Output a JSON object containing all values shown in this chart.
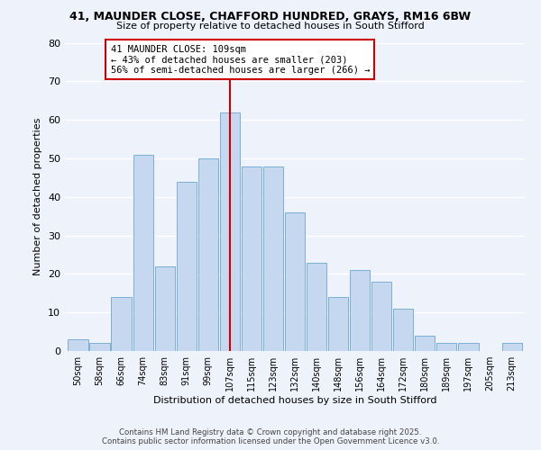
{
  "title": "41, MAUNDER CLOSE, CHAFFORD HUNDRED, GRAYS, RM16 6BW",
  "subtitle": "Size of property relative to detached houses in South Stifford",
  "xlabel": "Distribution of detached houses by size in South Stifford",
  "ylabel": "Number of detached properties",
  "bar_labels": [
    "50sqm",
    "58sqm",
    "66sqm",
    "74sqm",
    "83sqm",
    "91sqm",
    "99sqm",
    "107sqm",
    "115sqm",
    "123sqm",
    "132sqm",
    "140sqm",
    "148sqm",
    "156sqm",
    "164sqm",
    "172sqm",
    "180sqm",
    "189sqm",
    "197sqm",
    "205sqm",
    "213sqm"
  ],
  "bar_values": [
    3,
    2,
    14,
    51,
    22,
    44,
    50,
    62,
    48,
    48,
    36,
    23,
    14,
    21,
    18,
    11,
    4,
    2,
    2,
    0,
    2
  ],
  "bar_color": "#c5d8f0",
  "bar_edge_color": "#7aafd4",
  "reference_line_x": 7,
  "reference_line_color": "#cc0000",
  "annotation_title": "41 MAUNDER CLOSE: 109sqm",
  "annotation_line1": "← 43% of detached houses are smaller (203)",
  "annotation_line2": "56% of semi-detached houses are larger (266) →",
  "annotation_box_color": "#ffffff",
  "annotation_box_edge": "#cc0000",
  "ylim": [
    0,
    80
  ],
  "yticks": [
    0,
    10,
    20,
    30,
    40,
    50,
    60,
    70,
    80
  ],
  "background_color": "#eef2fb",
  "grid_color": "#ffffff",
  "footer_line1": "Contains HM Land Registry data © Crown copyright and database right 2025.",
  "footer_line2": "Contains public sector information licensed under the Open Government Licence v3.0."
}
